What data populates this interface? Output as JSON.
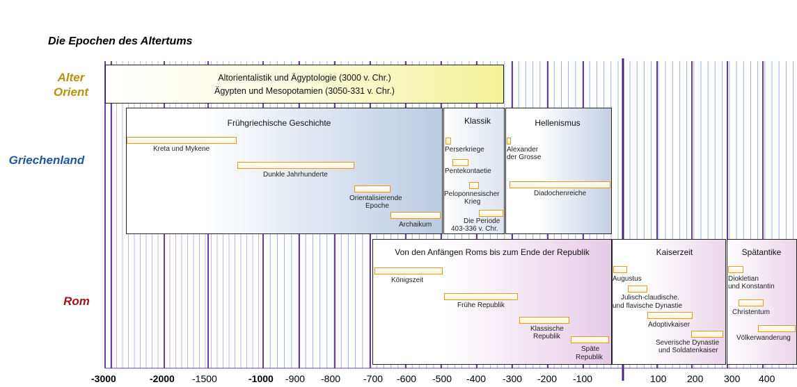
{
  "title": "Die Epochen des Altertums",
  "regions": {
    "orient_line1": "Alter",
    "orient_line2": "Orient",
    "greece": "Griechenland",
    "rome": "Rom"
  },
  "orient_box": {
    "line1": "Altorientalistik und Ägyptologie (3000 v. Chr.)",
    "line2": "Ägypten und Mesopotamien (3050-331 v. Chr.)"
  },
  "greece": {
    "early": {
      "title": "Frühgriechische Geschichte",
      "items": [
        "Kreta und Mykene",
        "Dunkle Jahrhunderte",
        "Orientalisierende",
        "Epoche",
        "Archaikum"
      ]
    },
    "classic": {
      "title": "Klassik",
      "items": [
        "Perserkriege",
        "Pentekontaetie",
        "Peloponnesischer",
        "Krieg",
        "Die Periode",
        "403-336 v. Chr."
      ]
    },
    "hellenism": {
      "title": "Hellenismus",
      "items": [
        "Alexander",
        "der Grosse",
        "Diadochenreiche"
      ]
    }
  },
  "rome": {
    "republic": {
      "title": "Von den Anfängen Roms bis zum Ende der Republik",
      "items": [
        "Königszeit",
        "Frühe Republik",
        "Klassische",
        "Republik",
        "Späte",
        "Republik"
      ]
    },
    "empire": {
      "title": "Kaiserzeit",
      "items": [
        "Augustus",
        "Julisch-claudische.",
        "und flavische Dynastie",
        "Adoptivkaiser",
        "Severische Dynastie",
        "und Soldatenkaiser"
      ]
    },
    "late": {
      "title": "Spätantike",
      "items": [
        "Diokletian",
        "und Konstantin",
        "Christentum",
        "Völkerwanderung"
      ]
    }
  },
  "axis": {
    "ticks": [
      "-3000",
      "-2000",
      "-1500",
      "-1000",
      "-900",
      "-800",
      "-700",
      "-600",
      "-500",
      "-400",
      "-300",
      "-200",
      "-100",
      "100",
      "200",
      "300",
      "400"
    ]
  },
  "colors": {
    "orient": "#b8900e",
    "greece": "#2255a4",
    "rome": "#9c1414",
    "bar_border": "#e39a1e"
  }
}
